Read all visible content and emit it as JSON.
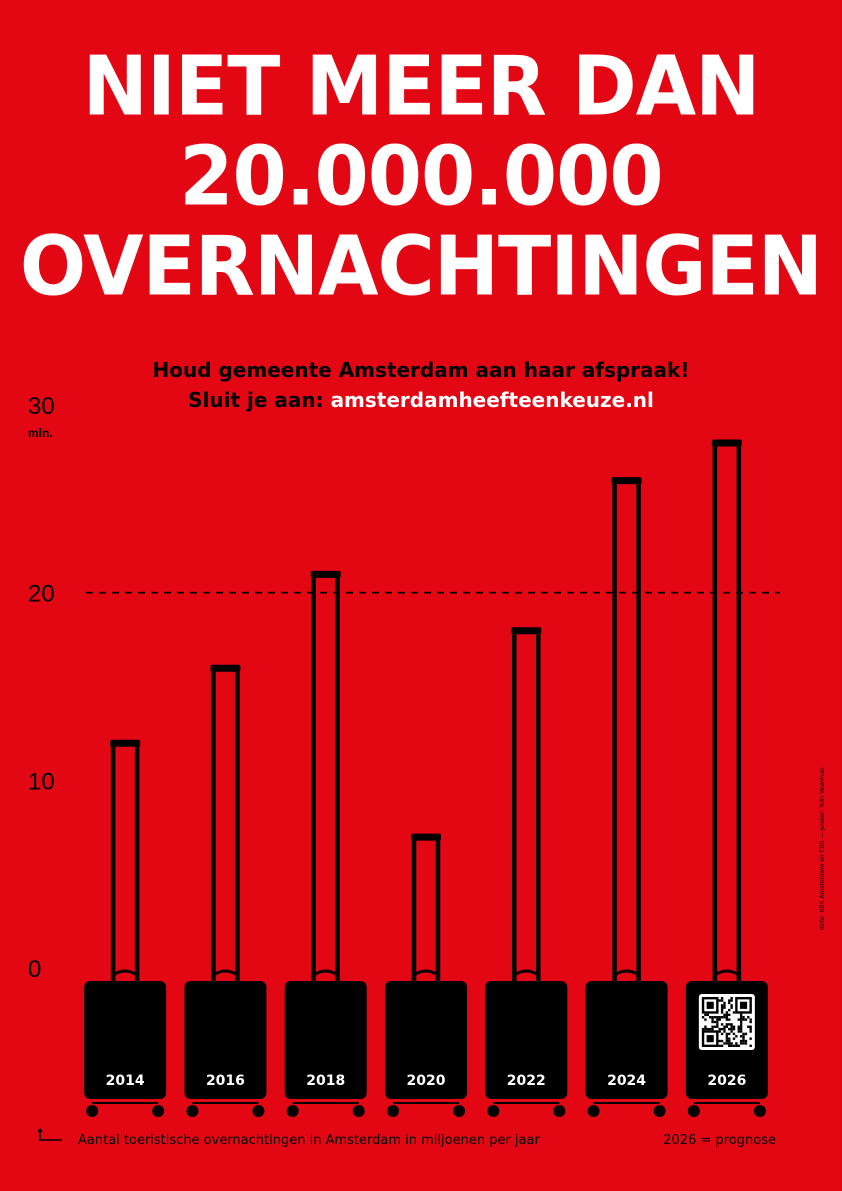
{
  "headline": {
    "line1": "NIET MEER DAN",
    "line2": "20.000.000",
    "line3": "OVERNACHTINGEN"
  },
  "subtitle": {
    "line1": "Houd gemeente Amsterdam aan haar afspraak!",
    "line2_prefix": "Sluit je aan:",
    "line2_url": "amsterdamheefteenkeuze.nl"
  },
  "footer": {
    "caption": "Aantal toeristische overnachtingen in Amsterdam in miljoenen per jaar",
    "note": "2026 = prognose",
    "credit": "data: IOIS Amsterdam en CBS  —  poster: Yuki Veerman"
  },
  "colors": {
    "background": "#e30613",
    "ink": "#000000",
    "text_light": "#ffffff"
  },
  "chart_data": {
    "type": "bar",
    "categories": [
      "2014",
      "2016",
      "2018",
      "2020",
      "2022",
      "2024",
      "2026"
    ],
    "values": [
      12,
      16,
      21,
      7,
      18,
      26,
      28
    ],
    "y_unit": "mln.",
    "yticks": [
      0,
      10,
      20,
      30
    ],
    "ylim": [
      0,
      30
    ],
    "reference_line": 20,
    "grid": false,
    "legend": "none",
    "bar_style": "suitcase-handle",
    "qr_code_on": "2026"
  }
}
